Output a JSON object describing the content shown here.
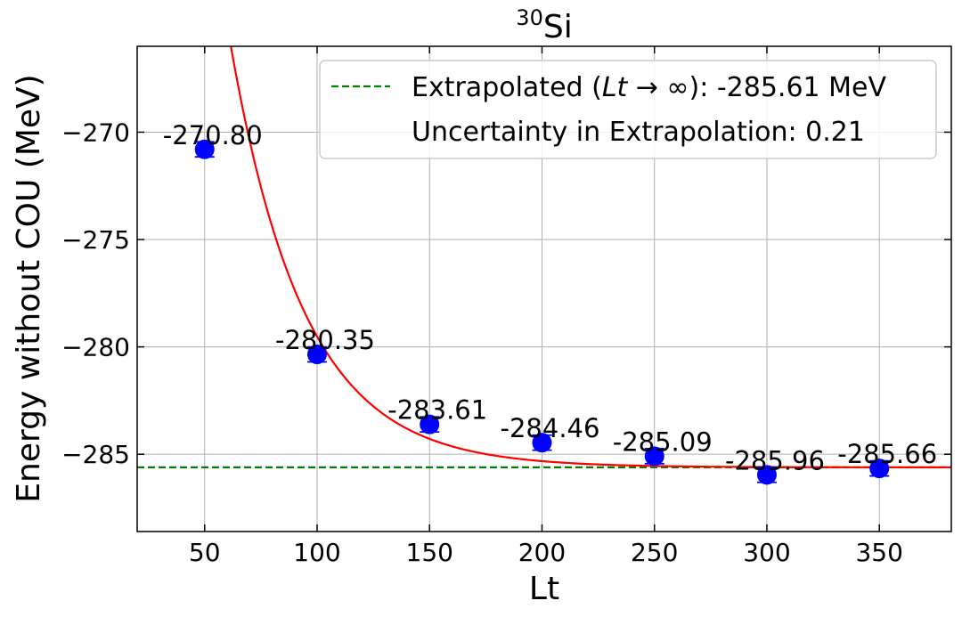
{
  "chart_data": {
    "type": "scatter",
    "title_sup": "30",
    "title_main": "Si",
    "xlabel": "Lt",
    "ylabel": "Energy without COU (MeV)",
    "xlim": [
      20,
      382
    ],
    "ylim": [
      -288.6,
      -266
    ],
    "xticks": [
      50,
      100,
      150,
      200,
      250,
      300,
      350
    ],
    "yticks": [
      -270,
      -275,
      -280,
      -285
    ],
    "grid": true,
    "legend_position": "top-right",
    "series": [
      {
        "x": [
          50,
          100,
          150,
          200,
          250,
          300,
          350
        ],
        "y": [
          -270.8,
          -280.35,
          -283.61,
          -284.46,
          -285.09,
          -285.96,
          -285.66
        ],
        "labels": [
          "-270.80",
          "-280.35",
          "-283.61",
          "-284.46",
          "-285.09",
          "-285.96",
          "-285.66"
        ],
        "yerr": [
          0.35,
          0.35,
          0.35,
          0.35,
          0.35,
          0.35,
          0.35
        ],
        "color": "#0000ff"
      }
    ],
    "fit_curve": {
      "asymptote": -285.61,
      "amplitude": 28.0,
      "decay": 0.0305,
      "color": "#ff0000"
    },
    "extrapolated_line": {
      "y": -285.61,
      "color": "#008000"
    },
    "legend": {
      "extrapolated_prefix": "Extrapolated (",
      "extrapolated_math": "Lt",
      "extrapolated_suffix": " → ∞): -285.61 MeV",
      "uncertainty": "Uncertainty in Extrapolation: 0.21"
    }
  }
}
